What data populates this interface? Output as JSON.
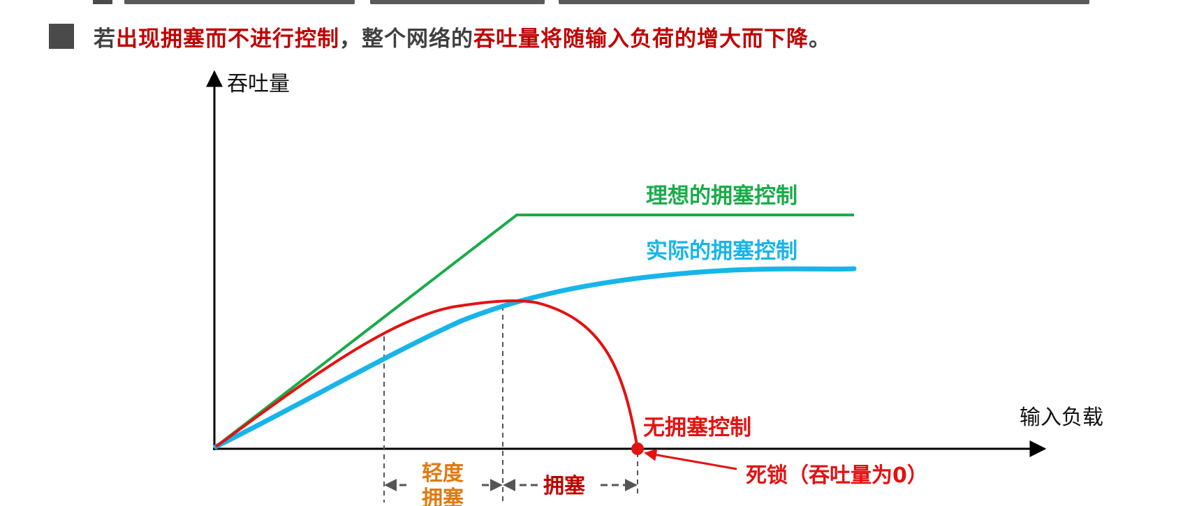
{
  "headline": {
    "prefix": "若",
    "highlight1": "出现拥塞而不进行控制",
    "middle": "，整个网络的",
    "highlight2": "吞吐量将随输入负荷的增大而下降",
    "suffix": "。"
  },
  "diagram": {
    "y_axis_label": "吞吐量",
    "x_axis_label": "输入负载",
    "curves": {
      "ideal": {
        "label": "理想的拥塞控制",
        "color": "#1aab4a"
      },
      "actual": {
        "label": "实际的拥塞控制",
        "color": "#18b4ea"
      },
      "none": {
        "label": "无拥塞控制",
        "color": "#e41111"
      }
    },
    "regions": {
      "light_line1": "轻度",
      "light_line2": "拥塞",
      "congestion": "拥塞"
    },
    "deadlock_label": "死锁（吞吐量为0）",
    "colors": {
      "axis": "#000000",
      "dashed": "#555555",
      "light_congestion": "#e07a10",
      "congestion": "#c00000",
      "deadlock": "#e41111"
    }
  }
}
